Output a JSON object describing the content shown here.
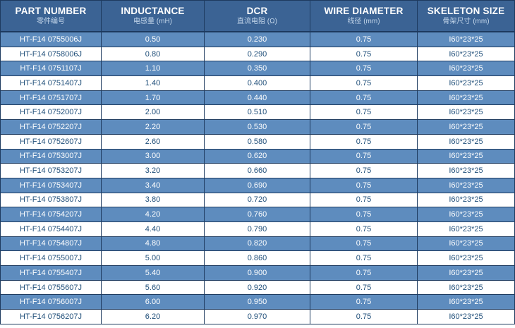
{
  "colors": {
    "header_bg": "#3b6394",
    "row_blue": "#5e8cbe",
    "row_white": "#ffffff",
    "grid_line": "#1d3a5f",
    "text_navy": "#1f4e79",
    "header_subtitle": "#c3d6ea"
  },
  "table": {
    "header": [
      {
        "en": "PART NUMBER",
        "zh": "零件编号"
      },
      {
        "en": "INDUCTANCE",
        "zh": "电感量 (mH)"
      },
      {
        "en": "DCR",
        "zh": "直流电阻 (Ω)"
      },
      {
        "en": "WIRE DIAMETER",
        "zh": "线径 (mm)"
      },
      {
        "en": "SKELETON SIZE",
        "zh": "骨架尺寸 (mm)"
      }
    ],
    "rows": [
      [
        "HT-F14 0755006J",
        "0.50",
        "0.230",
        "0.75",
        "I60*23*25"
      ],
      [
        "HT-F14 0758006J",
        "0.80",
        "0.290",
        "0.75",
        "I60*23*25"
      ],
      [
        "HT-F14 0751107J",
        "1.10",
        "0.350",
        "0.75",
        "I60*23*25"
      ],
      [
        "HT-F14 0751407J",
        "1.40",
        "0.400",
        "0.75",
        "I60*23*25"
      ],
      [
        "HT-F14 0751707J",
        "1.70",
        "0.440",
        "0.75",
        "I60*23*25"
      ],
      [
        "HT-F14 0752007J",
        "2.00",
        "0.510",
        "0.75",
        "I60*23*25"
      ],
      [
        "HT-F14 0752207J",
        "2.20",
        "0.530",
        "0.75",
        "I60*23*25"
      ],
      [
        "HT-F14 0752607J",
        "2.60",
        "0.580",
        "0.75",
        "I60*23*25"
      ],
      [
        "HT-F14 0753007J",
        "3.00",
        "0.620",
        "0.75",
        "I60*23*25"
      ],
      [
        "HT-F14 0753207J",
        "3.20",
        "0.660",
        "0.75",
        "I60*23*25"
      ],
      [
        "HT-F14 0753407J",
        "3.40",
        "0.690",
        "0.75",
        "I60*23*25"
      ],
      [
        "HT-F14 0753807J",
        "3.80",
        "0.720",
        "0.75",
        "I60*23*25"
      ],
      [
        "HT-F14 0754207J",
        "4.20",
        "0.760",
        "0.75",
        "I60*23*25"
      ],
      [
        "HT-F14 0754407J",
        "4.40",
        "0.790",
        "0.75",
        "I60*23*25"
      ],
      [
        "HT-F14 0754807J",
        "4.80",
        "0.820",
        "0.75",
        "I60*23*25"
      ],
      [
        "HT-F14 0755007J",
        "5.00",
        "0.860",
        "0.75",
        "I60*23*25"
      ],
      [
        "HT-F14 0755407J",
        "5.40",
        "0.900",
        "0.75",
        "I60*23*25"
      ],
      [
        "HT-F14 0755607J",
        "5.60",
        "0.920",
        "0.75",
        "I60*23*25"
      ],
      [
        "HT-F14 0756007J",
        "6.00",
        "0.950",
        "0.75",
        "I60*23*25"
      ],
      [
        "HT-F14 0756207J",
        "6.20",
        "0.970",
        "0.75",
        "I60*23*25"
      ]
    ]
  },
  "chart_data": {
    "type": "table",
    "title": "Inductor specification table",
    "columns": [
      "PART NUMBER 零件编号",
      "INDUCTANCE 电感量 (mH)",
      "DCR 直流电阻 (Ω)",
      "WIRE DIAMETER 线径 (mm)",
      "SKELETON SIZE 骨架尺寸 (mm)"
    ],
    "rows": [
      [
        "HT-F14 0755006J",
        0.5,
        0.23,
        0.75,
        "I60*23*25"
      ],
      [
        "HT-F14 0758006J",
        0.8,
        0.29,
        0.75,
        "I60*23*25"
      ],
      [
        "HT-F14 0751107J",
        1.1,
        0.35,
        0.75,
        "I60*23*25"
      ],
      [
        "HT-F14 0751407J",
        1.4,
        0.4,
        0.75,
        "I60*23*25"
      ],
      [
        "HT-F14 0751707J",
        1.7,
        0.44,
        0.75,
        "I60*23*25"
      ],
      [
        "HT-F14 0752007J",
        2.0,
        0.51,
        0.75,
        "I60*23*25"
      ],
      [
        "HT-F14 0752207J",
        2.2,
        0.53,
        0.75,
        "I60*23*25"
      ],
      [
        "HT-F14 0752607J",
        2.6,
        0.58,
        0.75,
        "I60*23*25"
      ],
      [
        "HT-F14 0753007J",
        3.0,
        0.62,
        0.75,
        "I60*23*25"
      ],
      [
        "HT-F14 0753207J",
        3.2,
        0.66,
        0.75,
        "I60*23*25"
      ],
      [
        "HT-F14 0753407J",
        3.4,
        0.69,
        0.75,
        "I60*23*25"
      ],
      [
        "HT-F14 0753807J",
        3.8,
        0.72,
        0.75,
        "I60*23*25"
      ],
      [
        "HT-F14 0754207J",
        4.2,
        0.76,
        0.75,
        "I60*23*25"
      ],
      [
        "HT-F14 0754407J",
        4.4,
        0.79,
        0.75,
        "I60*23*25"
      ],
      [
        "HT-F14 0754807J",
        4.8,
        0.82,
        0.75,
        "I60*23*25"
      ],
      [
        "HT-F14 0755007J",
        5.0,
        0.86,
        0.75,
        "I60*23*25"
      ],
      [
        "HT-F14 0755407J",
        5.4,
        0.9,
        0.75,
        "I60*23*25"
      ],
      [
        "HT-F14 0755607J",
        5.6,
        0.92,
        0.75,
        "I60*23*25"
      ],
      [
        "HT-F14 0756007J",
        6.0,
        0.95,
        0.75,
        "I60*23*25"
      ],
      [
        "HT-F14 0756207J",
        6.2,
        0.97,
        0.75,
        "I60*23*25"
      ]
    ]
  }
}
